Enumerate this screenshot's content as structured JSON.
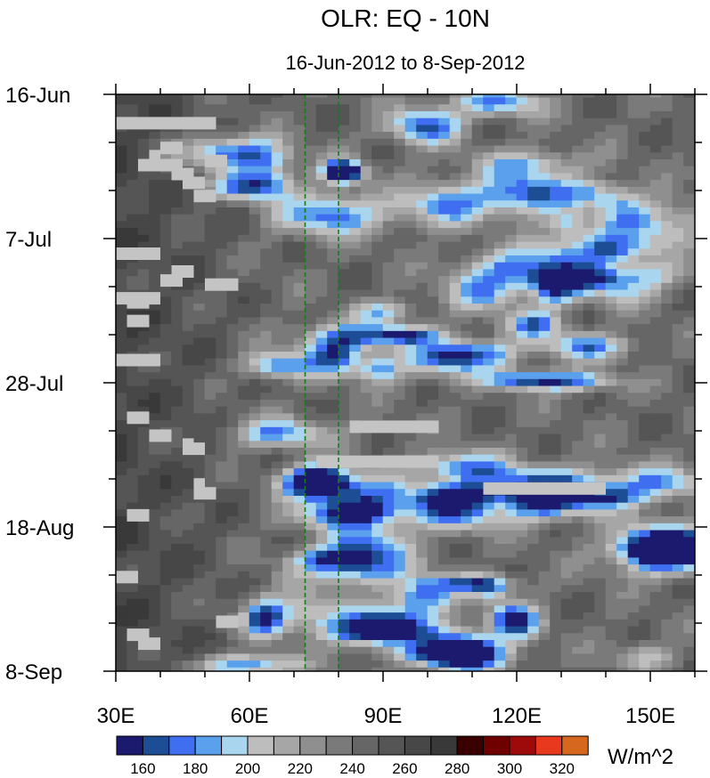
{
  "chart_data": {
    "type": "heatmap",
    "title": "OLR: EQ - 10N",
    "subtitle": "16-Jun-2012 to 8-Sep-2012",
    "x_axis": {
      "range": [
        30,
        160
      ],
      "ticks": [
        30,
        60,
        90,
        120,
        150
      ],
      "tick_labels": [
        "30E",
        "60E",
        "90E",
        "120E",
        "150E"
      ],
      "minor_step": 10
    },
    "y_axis": {
      "range_days": [
        0,
        84
      ],
      "start": "16-Jun",
      "end": "8-Sep",
      "tick_labels": [
        {
          "label": "16-Jun",
          "day": 0
        },
        {
          "label": "7-Jul",
          "day": 21
        },
        {
          "label": "28-Jul",
          "day": 42
        },
        {
          "label": "18-Aug",
          "day": 63
        },
        {
          "label": "8-Sep",
          "day": 84
        }
      ],
      "minor_step_days": 7
    },
    "reference_lines": {
      "color": "#1a7a1a",
      "style": "dashed",
      "x": [
        72.5,
        80
      ]
    },
    "colorbar": {
      "unit_label": "W/m^2",
      "levels": [
        160,
        170,
        180,
        190,
        200,
        210,
        220,
        230,
        240,
        250,
        260,
        270,
        280,
        290,
        300,
        310,
        320
      ],
      "labels": [
        "160",
        "180",
        "200",
        "220",
        "240",
        "260",
        "280",
        "300",
        "320"
      ],
      "colors": [
        "#1b1a6e",
        "#1c4d95",
        "#3f6ff0",
        "#5aa0ec",
        "#a9d6ee",
        "#bdbdbd",
        "#a6a6a6",
        "#8f8f8f",
        "#7a7a7a",
        "#666666",
        "#555555",
        "#474747",
        "#393939",
        "#3a0000",
        "#6e0000",
        "#9e0a0a",
        "#e8391e",
        "#d6671f"
      ]
    },
    "missing_value_color": "#c4c4c4",
    "field_description": "Hovmoller of outgoing longwave radiation; low OLR (blue) convective bands propagate eastward east of ~60E, high OLR (dark grey) dominates 30E-60E"
  }
}
